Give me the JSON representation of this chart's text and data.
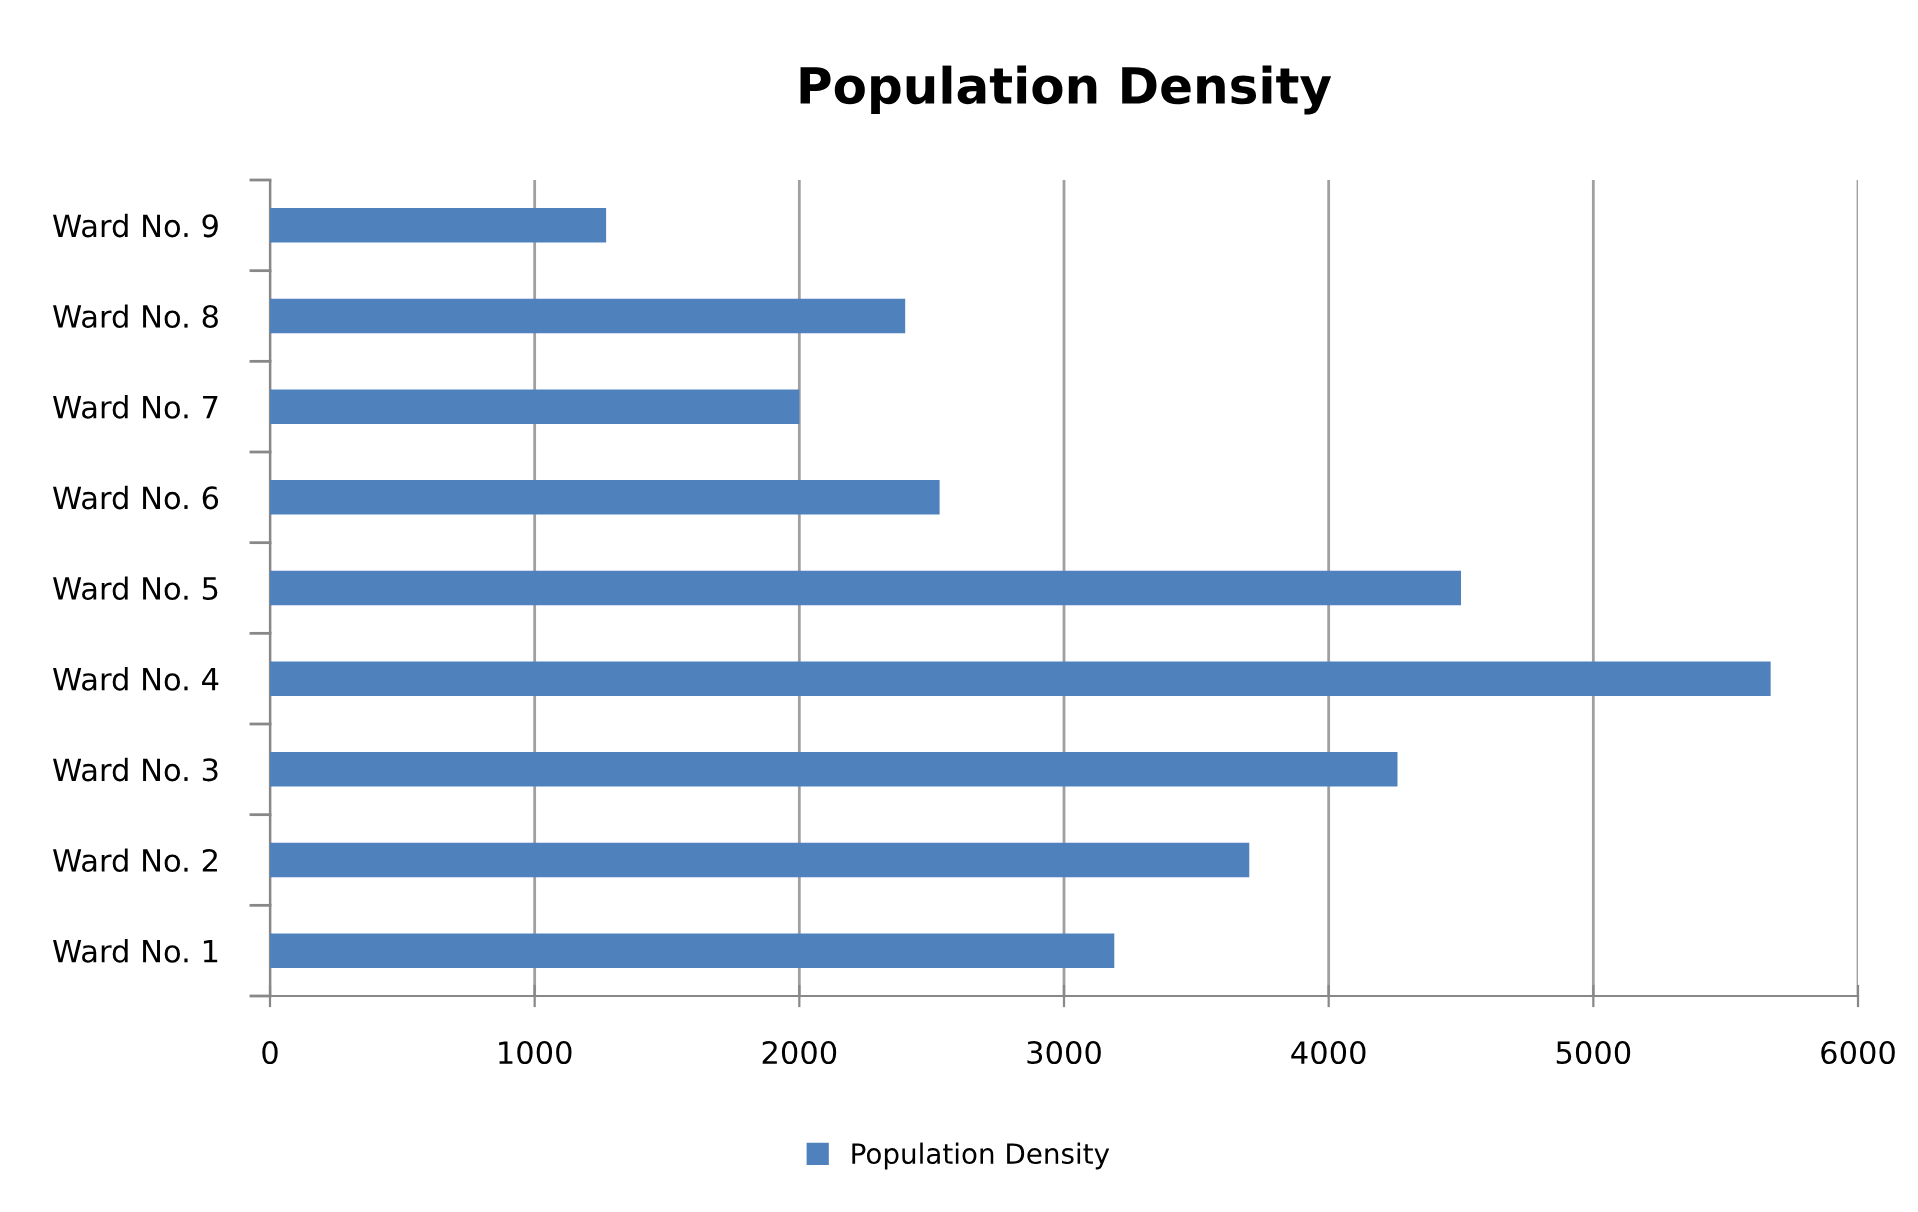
{
  "chart_data": {
    "type": "bar",
    "orientation": "horizontal",
    "title": "Population Density",
    "categories": [
      "Ward No. 9",
      "Ward No. 8",
      "Ward No. 7",
      "Ward No. 6",
      "Ward No. 5",
      "Ward No. 4",
      "Ward No. 3",
      "Ward No. 2",
      "Ward No. 1"
    ],
    "series": [
      {
        "name": "Population Density",
        "color": "#4f81bd",
        "values": [
          1270,
          2400,
          2000,
          2530,
          4500,
          5670,
          4260,
          3700,
          3190
        ]
      }
    ],
    "xlim": [
      0,
      6000
    ],
    "xticks": [
      0,
      1000,
      2000,
      3000,
      4000,
      5000,
      6000
    ],
    "grid": "x",
    "legend": "bottom"
  }
}
